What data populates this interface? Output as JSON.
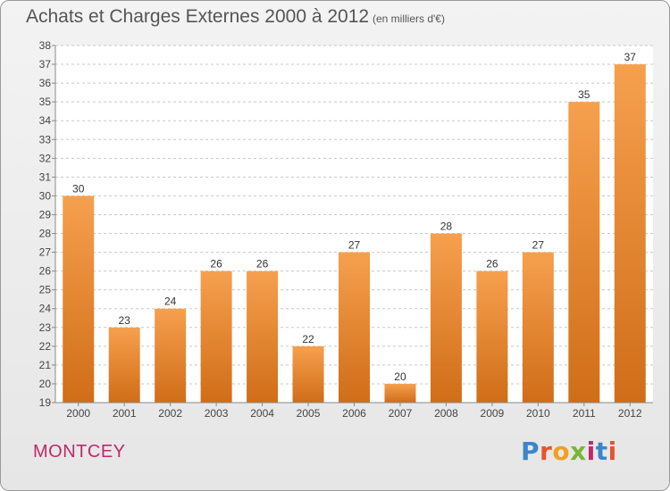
{
  "header": {
    "title": "Achats et Charges Externes 2000 à 2012",
    "unit": "(en milliers d'€)"
  },
  "footer": {
    "place": "MONTCEY",
    "brand": "Proxiti",
    "brand_letter_colors": [
      "#3a86c8",
      "#e8542a",
      "#f0a020",
      "#7ab534",
      "#c0286a",
      "#3a86c8",
      "#e8542a"
    ]
  },
  "chart_data": {
    "type": "bar",
    "title": "Achats et Charges Externes 2000 à 2012",
    "subtitle": "(en milliers d'€)",
    "xlabel": "",
    "ylabel": "",
    "categories": [
      "2000",
      "2001",
      "2002",
      "2003",
      "2004",
      "2005",
      "2006",
      "2007",
      "2008",
      "2009",
      "2010",
      "2011",
      "2012"
    ],
    "values": [
      30,
      23,
      24,
      26,
      26,
      22,
      27,
      20,
      28,
      26,
      27,
      35,
      37
    ],
    "ylim": [
      19,
      38
    ],
    "yticks": [
      19,
      20,
      21,
      22,
      23,
      24,
      25,
      26,
      27,
      28,
      29,
      30,
      31,
      32,
      33,
      34,
      35,
      36,
      37,
      38
    ],
    "grid": "horizontal dashed",
    "bar_color_top": "#f6a04e",
    "bar_color_bottom": "#d06d18"
  }
}
